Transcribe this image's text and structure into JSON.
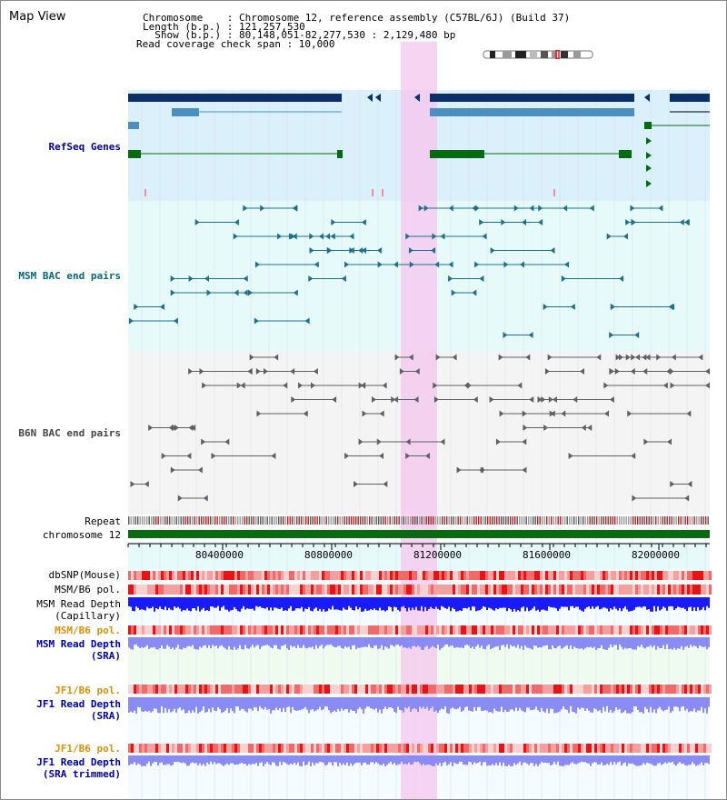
{
  "title": "Map View",
  "info": {
    "chromosome": "Chromosome    : Chromosome 12, reference assembly (C57BL/6J) (Build 37)",
    "length": "Length (b.p.) : 121,257,530",
    "show": "  Show (b.p.) : 80,148,051-82,277,530 : 2,129,480 bp",
    "span": "Read coverage check span : 10,000"
  },
  "tracks": {
    "refseq": "RefSeq Genes",
    "msm_bac": "MSM BAC end pairs",
    "b6n_bac": "B6N BAC end pairs",
    "repeat": "Repeat",
    "chromosome": "chromosome 12",
    "dbsnp": "dbSNP(Mouse)",
    "msm_b6_pol": "MSM/B6 pol.",
    "msm_read_depth": "MSM Read Depth",
    "capillary": "(Capillary)",
    "msm_b6_pol2": "MSM/B6 pol.",
    "msm_read_depth2": "MSM Read Depth",
    "sra": "(SRA)",
    "jf1_b6_pol": "JF1/B6 pol.",
    "jf1_read_depth": "JF1 Read Depth",
    "sra2": "(SRA)",
    "jf1_b6_pol2": "JF1/B6 pol.",
    "jf1_read_depth2": "JF1 Read Depth",
    "sra_trimmed": "(SRA trimmed)"
  },
  "axis": {
    "ticks": [
      "80400000",
      "80800000",
      "81200000",
      "81600000",
      "82000000"
    ]
  },
  "colors": {
    "refseq_bg": "#daf0fa",
    "msm_bac_bg": "#e6fafa",
    "b6n_bac_bg": "#f4f4f4",
    "highlight": "#f5c6ef",
    "dark_gene": "#0b2f66",
    "mid_gene": "#4a8fbf",
    "green_gene": "#056a12",
    "msm_pair": "#1f6f8f",
    "b6n_pair": "#606060",
    "chromosome_bar": "#0a6a12",
    "depth_blue": "#1a1aff",
    "depth_light": "#8b8bf5",
    "pol_red": "#ee3333",
    "label_dark_blue": "#0000aa",
    "label_teal": "#006a7a",
    "label_orange": "#e09000"
  }
}
